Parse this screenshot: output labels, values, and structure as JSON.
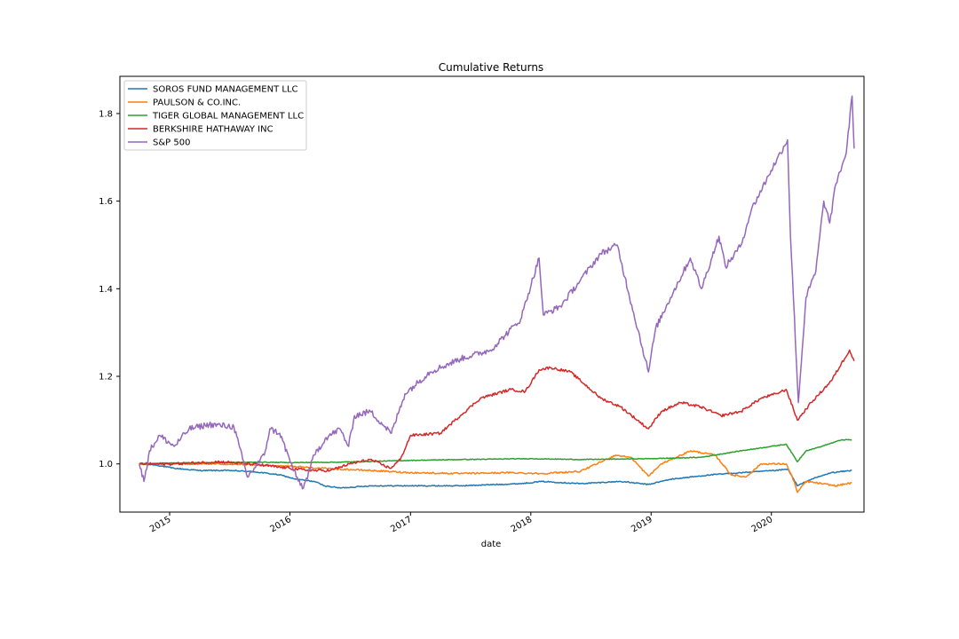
{
  "chart_data": {
    "type": "line",
    "title": "Cumulative Returns",
    "xlabel": "date",
    "ylabel": "",
    "xlim": [
      "2014-08-03",
      "2020-10-08"
    ],
    "ylim": [
      0.89,
      1.885
    ],
    "yticks": [
      1.0,
      1.2,
      1.4,
      1.6,
      1.8
    ],
    "ytick_labels": [
      "1.0",
      "1.2",
      "1.4",
      "1.6",
      "1.8"
    ],
    "xticks": [
      "2015-01-01",
      "2016-01-01",
      "2017-01-01",
      "2018-01-01",
      "2019-01-01",
      "2020-01-01"
    ],
    "xtick_labels": [
      "2015",
      "2016",
      "2017",
      "2018",
      "2019",
      "2020"
    ],
    "grid": false,
    "legend_position": "top-left",
    "series": [
      {
        "name": "SOROS FUND MANAGEMENT LLC",
        "color": "#1f77b4",
        "points": [
          [
            "2014-10-01",
            1.0
          ],
          [
            "2014-11-15",
            0.998
          ],
          [
            "2015-01-15",
            0.99
          ],
          [
            "2015-04-01",
            0.985
          ],
          [
            "2015-07-01",
            0.985
          ],
          [
            "2015-09-15",
            0.982
          ],
          [
            "2015-12-01",
            0.975
          ],
          [
            "2016-01-20",
            0.965
          ],
          [
            "2016-03-15",
            0.96
          ],
          [
            "2016-04-15",
            0.95
          ],
          [
            "2016-06-01",
            0.945
          ],
          [
            "2016-09-01",
            0.95
          ],
          [
            "2017-01-01",
            0.95
          ],
          [
            "2017-06-01",
            0.95
          ],
          [
            "2017-12-01",
            0.955
          ],
          [
            "2018-02-05",
            0.96
          ],
          [
            "2018-06-01",
            0.955
          ],
          [
            "2018-10-01",
            0.96
          ],
          [
            "2018-12-24",
            0.953
          ],
          [
            "2019-03-01",
            0.965
          ],
          [
            "2019-07-01",
            0.975
          ],
          [
            "2019-10-01",
            0.98
          ],
          [
            "2020-01-15",
            0.985
          ],
          [
            "2020-02-20",
            0.988
          ],
          [
            "2020-03-20",
            0.95
          ],
          [
            "2020-05-01",
            0.965
          ],
          [
            "2020-07-01",
            0.98
          ],
          [
            "2020-09-01",
            0.985
          ]
        ]
      },
      {
        "name": "PAULSON & CO.INC.",
        "color": "#ff7f0e",
        "points": [
          [
            "2014-10-01",
            1.0
          ],
          [
            "2015-01-15",
            1.0
          ],
          [
            "2015-06-01",
            1.0
          ],
          [
            "2015-09-01",
            0.998
          ],
          [
            "2016-01-01",
            0.995
          ],
          [
            "2016-04-01",
            0.99
          ],
          [
            "2016-09-01",
            0.985
          ],
          [
            "2017-01-01",
            0.98
          ],
          [
            "2017-06-01",
            0.978
          ],
          [
            "2017-11-01",
            0.98
          ],
          [
            "2018-02-05",
            0.978
          ],
          [
            "2018-06-01",
            0.983
          ],
          [
            "2018-09-15",
            1.02
          ],
          [
            "2018-11-01",
            1.015
          ],
          [
            "2018-12-24",
            0.972
          ],
          [
            "2019-02-01",
            1.0
          ],
          [
            "2019-05-01",
            1.03
          ],
          [
            "2019-07-15",
            1.02
          ],
          [
            "2019-09-01",
            0.975
          ],
          [
            "2019-10-15",
            0.97
          ],
          [
            "2019-12-01",
            1.0
          ],
          [
            "2020-02-15",
            1.0
          ],
          [
            "2020-03-10",
            0.96
          ],
          [
            "2020-03-20",
            0.935
          ],
          [
            "2020-04-15",
            0.96
          ],
          [
            "2020-06-01",
            0.955
          ],
          [
            "2020-07-15",
            0.95
          ],
          [
            "2020-09-01",
            0.957
          ]
        ]
      },
      {
        "name": "TIGER GLOBAL MANAGEMENT LLC",
        "color": "#2ca02c",
        "points": [
          [
            "2014-10-01",
            1.0
          ],
          [
            "2015-01-01",
            1.002
          ],
          [
            "2015-06-01",
            1.003
          ],
          [
            "2015-10-01",
            1.004
          ],
          [
            "2016-01-01",
            1.003
          ],
          [
            "2016-06-01",
            1.004
          ],
          [
            "2017-01-01",
            1.008
          ],
          [
            "2017-06-01",
            1.01
          ],
          [
            "2018-01-01",
            1.012
          ],
          [
            "2018-06-01",
            1.01
          ],
          [
            "2019-01-01",
            1.012
          ],
          [
            "2019-06-01",
            1.015
          ],
          [
            "2019-10-01",
            1.03
          ],
          [
            "2020-02-15",
            1.045
          ],
          [
            "2020-03-20",
            1.005
          ],
          [
            "2020-04-15",
            1.03
          ],
          [
            "2020-06-01",
            1.04
          ],
          [
            "2020-08-01",
            1.055
          ],
          [
            "2020-09-01",
            1.055
          ]
        ]
      },
      {
        "name": "BERKSHIRE HATHAWAY INC",
        "color": "#d62728",
        "points": [
          [
            "2014-10-01",
            1.0
          ],
          [
            "2015-01-15",
            1.0
          ],
          [
            "2015-06-01",
            1.005
          ],
          [
            "2015-09-01",
            1.0
          ],
          [
            "2016-01-01",
            0.99
          ],
          [
            "2016-03-01",
            0.985
          ],
          [
            "2016-05-01",
            0.985
          ],
          [
            "2016-07-01",
            1.0
          ],
          [
            "2016-09-01",
            1.01
          ],
          [
            "2016-11-01",
            0.99
          ],
          [
            "2016-12-01",
            1.01
          ],
          [
            "2017-01-01",
            1.065
          ],
          [
            "2017-04-01",
            1.07
          ],
          [
            "2017-06-01",
            1.11
          ],
          [
            "2017-08-01",
            1.15
          ],
          [
            "2017-11-01",
            1.17
          ],
          [
            "2017-12-15",
            1.165
          ],
          [
            "2018-01-26",
            1.215
          ],
          [
            "2018-03-01",
            1.22
          ],
          [
            "2018-05-01",
            1.21
          ],
          [
            "2018-06-01",
            1.19
          ],
          [
            "2018-08-01",
            1.15
          ],
          [
            "2018-10-01",
            1.13
          ],
          [
            "2018-12-24",
            1.08
          ],
          [
            "2019-02-01",
            1.12
          ],
          [
            "2019-04-01",
            1.14
          ],
          [
            "2019-06-01",
            1.13
          ],
          [
            "2019-08-01",
            1.11
          ],
          [
            "2019-10-01",
            1.12
          ],
          [
            "2019-12-01",
            1.15
          ],
          [
            "2020-01-15",
            1.16
          ],
          [
            "2020-02-15",
            1.17
          ],
          [
            "2020-03-20",
            1.1
          ],
          [
            "2020-05-01",
            1.14
          ],
          [
            "2020-07-01",
            1.19
          ],
          [
            "2020-08-25",
            1.26
          ],
          [
            "2020-09-08",
            1.235
          ]
        ]
      },
      {
        "name": "S&P 500",
        "color": "#9467bd",
        "points": [
          [
            "2014-10-01",
            1.0
          ],
          [
            "2014-10-15",
            0.96
          ],
          [
            "2014-11-01",
            1.03
          ],
          [
            "2014-12-01",
            1.065
          ],
          [
            "2015-01-15",
            1.04
          ],
          [
            "2015-03-01",
            1.08
          ],
          [
            "2015-05-01",
            1.09
          ],
          [
            "2015-07-15",
            1.085
          ],
          [
            "2015-08-25",
            0.97
          ],
          [
            "2015-10-15",
            1.02
          ],
          [
            "2015-11-01",
            1.08
          ],
          [
            "2015-12-01",
            1.07
          ],
          [
            "2016-01-20",
            0.97
          ],
          [
            "2016-02-11",
            0.945
          ],
          [
            "2016-03-15",
            1.02
          ],
          [
            "2016-04-20",
            1.06
          ],
          [
            "2016-06-01",
            1.08
          ],
          [
            "2016-06-27",
            1.04
          ],
          [
            "2016-07-15",
            1.11
          ],
          [
            "2016-09-01",
            1.12
          ],
          [
            "2016-11-04",
            1.07
          ],
          [
            "2016-12-15",
            1.16
          ],
          [
            "2017-03-01",
            1.21
          ],
          [
            "2017-06-01",
            1.24
          ],
          [
            "2017-09-01",
            1.26
          ],
          [
            "2017-12-01",
            1.33
          ],
          [
            "2018-01-26",
            1.47
          ],
          [
            "2018-02-08",
            1.34
          ],
          [
            "2018-04-01",
            1.36
          ],
          [
            "2018-06-01",
            1.42
          ],
          [
            "2018-08-01",
            1.48
          ],
          [
            "2018-09-20",
            1.5
          ],
          [
            "2018-10-25",
            1.39
          ],
          [
            "2018-12-24",
            1.21
          ],
          [
            "2019-01-15",
            1.31
          ],
          [
            "2019-03-01",
            1.38
          ],
          [
            "2019-04-30",
            1.47
          ],
          [
            "2019-06-03",
            1.4
          ],
          [
            "2019-07-26",
            1.52
          ],
          [
            "2019-08-15",
            1.45
          ],
          [
            "2019-10-01",
            1.5
          ],
          [
            "2019-11-01",
            1.58
          ],
          [
            "2019-12-31",
            1.67
          ],
          [
            "2020-02-19",
            1.74
          ],
          [
            "2020-02-28",
            1.52
          ],
          [
            "2020-03-23",
            1.14
          ],
          [
            "2020-04-15",
            1.38
          ],
          [
            "2020-05-15",
            1.44
          ],
          [
            "2020-06-08",
            1.6
          ],
          [
            "2020-06-26",
            1.55
          ],
          [
            "2020-07-15",
            1.64
          ],
          [
            "2020-08-15",
            1.71
          ],
          [
            "2020-09-02",
            1.84
          ],
          [
            "2020-09-08",
            1.72
          ]
        ]
      }
    ]
  }
}
